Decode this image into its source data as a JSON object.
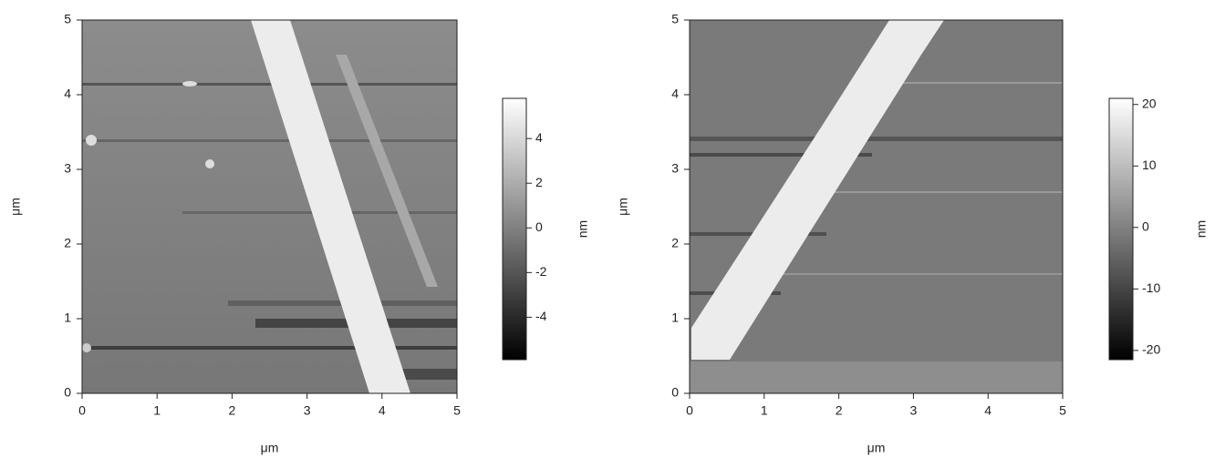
{
  "chart_data": [
    {
      "type": "image",
      "xlabel": "μm",
      "ylabel": "μm",
      "colorbar_label": "nm",
      "xlim": [
        0,
        5
      ],
      "ylim": [
        0,
        5
      ],
      "xticks": [
        0,
        1,
        2,
        3,
        4,
        5
      ],
      "yticks": [
        0,
        1,
        2,
        3,
        4,
        5
      ],
      "clim": [
        -5.9,
        5.8
      ],
      "cticks": [
        -4,
        -2,
        0,
        2,
        4
      ]
    },
    {
      "type": "image",
      "xlabel": "μm",
      "ylabel": "μm",
      "colorbar_label": "nm",
      "xlim": [
        0,
        5
      ],
      "ylim": [
        0,
        5
      ],
      "xticks": [
        0,
        1,
        2,
        3,
        4,
        5
      ],
      "yticks": [
        0,
        1,
        2,
        3,
        4,
        5
      ],
      "clim": [
        -21.5,
        21
      ],
      "cticks": [
        -20,
        -10,
        0,
        10,
        20
      ]
    }
  ]
}
